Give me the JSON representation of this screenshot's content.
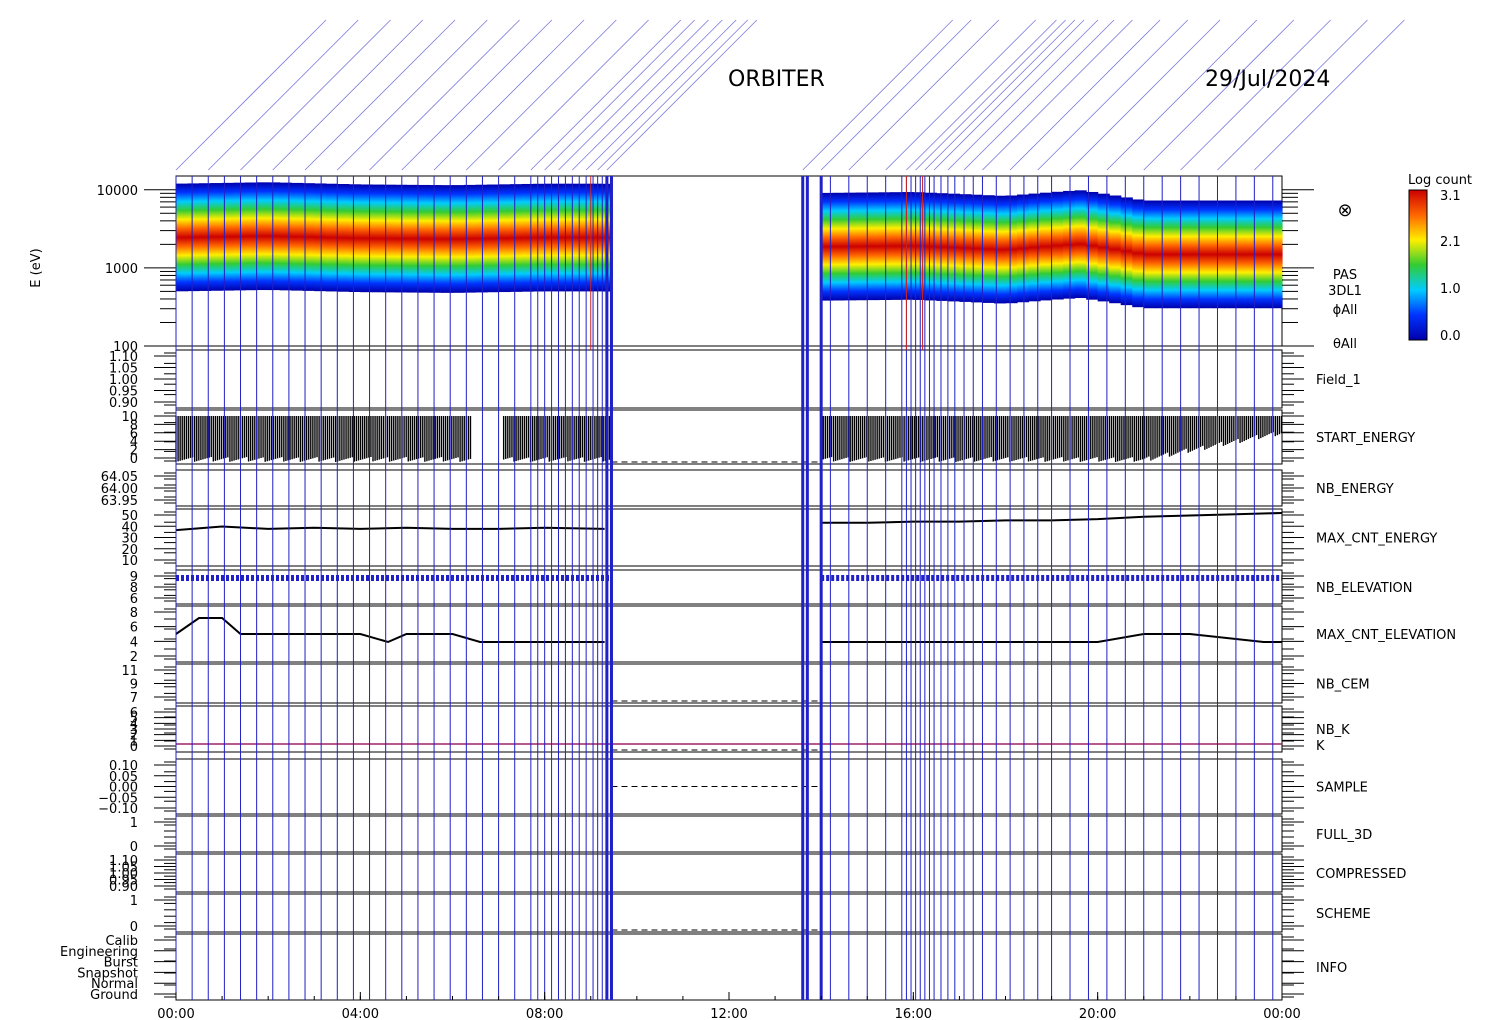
{
  "header": {
    "mission": "ORBITER",
    "date": "29/Jul/2024"
  },
  "time_axis": {
    "ticks": [
      "00:00",
      "04:00",
      "08:00",
      "12:00",
      "16:00",
      "20:00",
      "00:00"
    ]
  },
  "spectrogram": {
    "ylabel": "E (eV)",
    "y_ticks": [
      "10000",
      "1000",
      "100"
    ],
    "labels": [
      "PAS",
      "3DL1",
      "ϕAll",
      "θAll"
    ],
    "symbol": "⊗",
    "colorbar": {
      "title": "Log count",
      "ticks": [
        "3.1",
        "2.1",
        "1.0",
        "0.0"
      ],
      "colors": [
        "#cc0000",
        "#ff6600",
        "#ffee00",
        "#33cc33",
        "#00ccff",
        "#0033ff",
        "#0000aa"
      ]
    }
  },
  "panels": [
    {
      "id": "field1",
      "label": "Field_1",
      "color": "#2020c8",
      "ticks": [
        "1.10",
        "1.05",
        "1.00",
        "0.95",
        "0.90"
      ]
    },
    {
      "id": "start_energy",
      "label": "START_ENERGY",
      "color": "#000000",
      "ticks": [
        "10",
        "8",
        "6",
        "4",
        "2",
        "0"
      ]
    },
    {
      "id": "nb_energy",
      "label": "NB_ENERGY",
      "color": "#2020c8",
      "ticks": [
        "64.05",
        "64.00",
        "63.95"
      ]
    },
    {
      "id": "max_cnt_energy",
      "label": "MAX_CNT_ENERGY",
      "color": "#000000",
      "ticks": [
        "50",
        "40",
        "30",
        "20",
        "10"
      ]
    },
    {
      "id": "nb_elevation",
      "label": "NB_ELEVATION",
      "color": "#2020c8",
      "ticks": [
        "9",
        "8",
        "6"
      ]
    },
    {
      "id": "max_cnt_elevation",
      "label": "MAX_CNT_ELEVATION",
      "color": "#000000",
      "ticks": [
        "8",
        "6",
        "4",
        "2"
      ]
    },
    {
      "id": "nb_cem",
      "label": "NB_CEM",
      "color": "#2020c8",
      "ticks": [
        "11",
        "9",
        "7"
      ]
    },
    {
      "id": "nb_k",
      "label": "NB_K",
      "label2": "K",
      "color": "#cc2222",
      "color2": "#2020c8",
      "ticks": [
        "6",
        "5",
        "4",
        "3",
        "2",
        "1",
        "0"
      ]
    },
    {
      "id": "sample",
      "label": "SAMPLE",
      "color": "#2020c8",
      "ticks": [
        "0.10",
        "0.05",
        "0.00",
        "−0.05",
        "−0.10"
      ]
    },
    {
      "id": "full_3d",
      "label": "FULL_3D",
      "color": "#2020c8",
      "ticks": [
        "1",
        "0"
      ]
    },
    {
      "id": "compressed",
      "label": "COMPRESSED",
      "color": "#000000",
      "ticks": [
        "1.10",
        "1.05",
        "1.00",
        "0.95",
        "0.90"
      ]
    },
    {
      "id": "scheme",
      "label": "SCHEME",
      "color": "#000000",
      "ticks": [
        "1",
        "0"
      ]
    },
    {
      "id": "info",
      "label": "INFO",
      "color": "#000000",
      "ticks": [
        "Calib",
        "Engineering",
        "Burst",
        "Snapshot",
        "Normal",
        "Ground"
      ]
    }
  ],
  "chart_data": {
    "type": "heatmap",
    "title": "ORBITER",
    "subtitle": "29/Jul/2024",
    "x_range_hours": [
      0,
      24
    ],
    "spectrogram": {
      "ylabel": "E (eV)",
      "ylim": [
        100,
        15000
      ],
      "log_y": true,
      "colorbar_range": [
        0.0,
        3.1
      ],
      "coverage_hours": [
        [
          0,
          9.45
        ],
        [
          14.0,
          24
        ]
      ],
      "peak_energy_eV": [
        [
          0,
          2300
        ],
        [
          2,
          2400
        ],
        [
          4,
          2250
        ],
        [
          6,
          2200
        ],
        [
          8,
          2300
        ],
        [
          9.3,
          2300
        ],
        [
          14,
          1750
        ],
        [
          16,
          1800
        ],
        [
          18,
          1600
        ],
        [
          19.6,
          1900
        ],
        [
          21,
          1400
        ],
        [
          24,
          1400
        ]
      ]
    },
    "max_cnt_energy": {
      "x": [
        0,
        1,
        2,
        3,
        4,
        5,
        6,
        7,
        8,
        9.3,
        14,
        15,
        16,
        17,
        18,
        19,
        20,
        21,
        22,
        23,
        24
      ],
      "y": [
        36,
        39,
        37,
        38,
        37,
        38,
        37,
        37,
        38,
        37,
        42,
        42,
        43,
        43,
        44,
        44,
        45,
        47,
        48,
        49,
        50
      ]
    },
    "max_cnt_elevation": {
      "x": [
        0,
        0.5,
        1,
        1.4,
        2,
        3,
        4,
        4.6,
        5,
        6,
        6.6,
        7,
        8,
        9.3,
        14,
        16,
        18,
        20,
        21,
        22,
        23.6,
        24
      ],
      "y": [
        5,
        7,
        7,
        5,
        5,
        5,
        5,
        4,
        5,
        5,
        4,
        4,
        4,
        4,
        4,
        4,
        4,
        4,
        5,
        5,
        4,
        4
      ]
    },
    "start_energy": {
      "max": 10,
      "gap_hours": [
        6.4,
        7.1
      ]
    },
    "event_lines_hours": [
      0.0,
      0.35,
      0.7,
      1.05,
      1.4,
      1.75,
      2.1,
      2.45,
      2.8,
      3.15,
      3.5,
      3.85,
      4.2,
      4.55,
      4.9,
      5.25,
      5.6,
      5.95,
      6.3,
      6.65,
      7.0,
      7.35,
      7.7,
      7.85,
      8.0,
      8.15,
      8.3,
      8.45,
      8.6,
      8.75,
      8.9,
      9.05,
      9.15,
      9.25,
      9.35,
      9.45,
      13.6,
      13.7,
      14.0,
      14.2,
      14.6,
      15.0,
      15.4,
      15.75,
      15.85,
      15.95,
      16.05,
      16.15,
      16.25,
      16.35,
      16.45,
      16.6,
      16.75,
      16.9,
      17.1,
      17.3,
      17.5,
      17.8,
      18.1,
      18.4,
      18.7,
      19.0,
      19.4,
      19.8,
      20.2,
      20.6,
      21.0,
      21.4,
      21.8,
      22.2,
      22.6,
      23.0,
      23.4,
      23.8
    ],
    "red_event_lines_hours": [
      9.0,
      15.85,
      16.2
    ]
  }
}
